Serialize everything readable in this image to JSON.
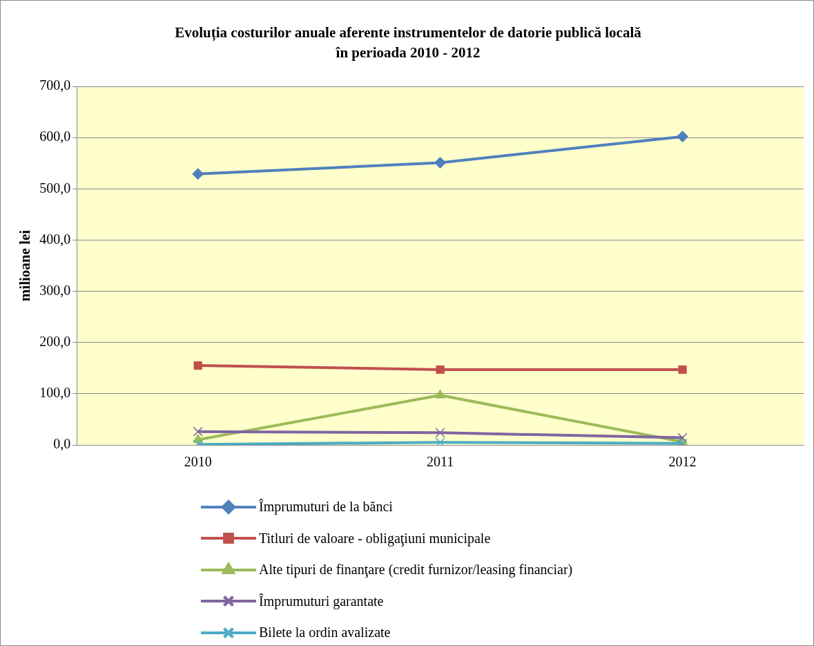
{
  "chart_data": {
    "type": "line",
    "title": "Evoluția costurilor anuale aferente instrumentelor de datorie publică locală în perioada 2010 - 2012",
    "ylabel": "milioane lei",
    "categories": [
      "2010",
      "2011",
      "2012"
    ],
    "series": [
      {
        "name": "Împrumuturi de la bănci",
        "color": "#4f81bd",
        "marker": "diamond",
        "values": [
          529,
          551,
          602
        ]
      },
      {
        "name": "Titluri de valoare - obligaţiuni municipale",
        "color": "#c0504d",
        "marker": "square",
        "values": [
          155,
          147,
          147
        ]
      },
      {
        "name": "Alte tipuri de finanţare (credit furnizor/leasing financiar)",
        "color": "#9bbb59",
        "marker": "triangle",
        "values": [
          10,
          97,
          6
        ]
      },
      {
        "name": "Împrumuturi garantate",
        "color": "#8064a2",
        "marker": "cross",
        "values": [
          26,
          24,
          14
        ]
      },
      {
        "name": "Bilete la ordin avalizate",
        "color": "#4bacc6",
        "marker": "cross",
        "values": [
          1,
          5,
          3
        ]
      }
    ],
    "ylim": [
      0,
      700
    ],
    "yticks": [
      {
        "value": 0,
        "label": "0,0"
      },
      {
        "value": 100,
        "label": "100,0"
      },
      {
        "value": 200,
        "label": "200,0"
      },
      {
        "value": 300,
        "label": "300,0"
      },
      {
        "value": 400,
        "label": "400,0"
      },
      {
        "value": 500,
        "label": "500,0"
      },
      {
        "value": 600,
        "label": "600,0"
      },
      {
        "value": 700,
        "label": "700,0"
      }
    ],
    "grid": "y",
    "legend": "bottom"
  }
}
